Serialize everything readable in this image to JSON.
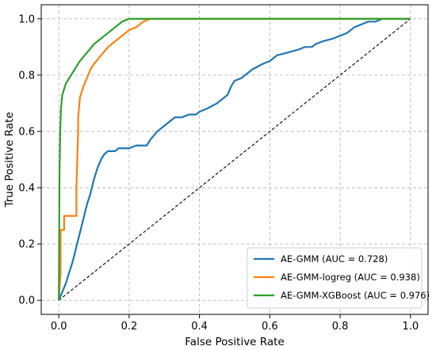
{
  "chart_data": {
    "type": "line",
    "title": "",
    "xlabel": "False Positive Rate",
    "ylabel": "True Positive Rate",
    "xlim": [
      -0.05,
      1.05
    ],
    "ylim": [
      -0.05,
      1.05
    ],
    "xticks": [
      0.0,
      0.2,
      0.4,
      0.6,
      0.8,
      1.0
    ],
    "xtick_labels": [
      "0.0",
      "0.2",
      "0.4",
      "0.6",
      "0.8",
      "1.0"
    ],
    "yticks": [
      0.0,
      0.2,
      0.4,
      0.6,
      0.8,
      1.0
    ],
    "ytick_labels": [
      "0.0",
      "0.2",
      "0.4",
      "0.6",
      "0.8",
      "1.0"
    ],
    "grid": true,
    "legend_position": "lower-right",
    "series": [
      {
        "name": "AE-GMM (AUC = 0.728)",
        "color": "#1f77b4",
        "x": [
          0.0,
          0.01,
          0.02,
          0.03,
          0.04,
          0.05,
          0.06,
          0.07,
          0.08,
          0.09,
          0.1,
          0.11,
          0.12,
          0.13,
          0.14,
          0.16,
          0.17,
          0.2,
          0.22,
          0.25,
          0.26,
          0.28,
          0.3,
          0.32,
          0.33,
          0.35,
          0.37,
          0.38,
          0.39,
          0.4,
          0.42,
          0.45,
          0.48,
          0.49,
          0.5,
          0.52,
          0.55,
          0.58,
          0.6,
          0.62,
          0.65,
          0.68,
          0.7,
          0.72,
          0.73,
          0.75,
          0.78,
          0.8,
          0.82,
          0.84,
          0.86,
          0.88,
          0.9,
          0.92,
          0.95,
          1.0
        ],
        "y": [
          0.0,
          0.03,
          0.06,
          0.1,
          0.14,
          0.19,
          0.24,
          0.29,
          0.34,
          0.38,
          0.43,
          0.47,
          0.5,
          0.52,
          0.53,
          0.53,
          0.54,
          0.54,
          0.55,
          0.55,
          0.57,
          0.6,
          0.62,
          0.64,
          0.65,
          0.65,
          0.66,
          0.66,
          0.66,
          0.67,
          0.68,
          0.7,
          0.73,
          0.76,
          0.78,
          0.79,
          0.82,
          0.84,
          0.85,
          0.87,
          0.88,
          0.89,
          0.9,
          0.9,
          0.91,
          0.92,
          0.93,
          0.94,
          0.95,
          0.97,
          0.98,
          0.99,
          0.99,
          1.0,
          1.0,
          1.0
        ]
      },
      {
        "name": "AE-GMM-logreg (AUC = 0.938)",
        "color": "#ff7f0e",
        "x": [
          0.0,
          0.005,
          0.005,
          0.015,
          0.015,
          0.05,
          0.05,
          0.055,
          0.055,
          0.06,
          0.07,
          0.08,
          0.09,
          0.1,
          0.12,
          0.14,
          0.16,
          0.18,
          0.2,
          0.22,
          0.24,
          0.26,
          0.28,
          0.3,
          0.4,
          0.6,
          0.8,
          1.0
        ],
        "y": [
          0.0,
          0.1,
          0.25,
          0.25,
          0.3,
          0.3,
          0.4,
          0.6,
          0.65,
          0.72,
          0.76,
          0.79,
          0.82,
          0.84,
          0.87,
          0.9,
          0.92,
          0.94,
          0.96,
          0.97,
          0.99,
          1.0,
          1.0,
          1.0,
          1.0,
          1.0,
          1.0,
          1.0
        ]
      },
      {
        "name": "AE-GMM-XGBoost (AUC = 0.976)",
        "color": "#2ca02c",
        "x": [
          0.0,
          0.002,
          0.004,
          0.006,
          0.01,
          0.02,
          0.03,
          0.04,
          0.05,
          0.06,
          0.08,
          0.1,
          0.12,
          0.14,
          0.16,
          0.18,
          0.2,
          0.22,
          0.25,
          0.3,
          0.4,
          0.5,
          0.6,
          0.7,
          0.8,
          0.9,
          1.0
        ],
        "y": [
          0.0,
          0.45,
          0.6,
          0.68,
          0.73,
          0.77,
          0.79,
          0.81,
          0.83,
          0.85,
          0.88,
          0.91,
          0.93,
          0.95,
          0.97,
          0.99,
          1.0,
          1.0,
          1.0,
          1.0,
          1.0,
          1.0,
          1.0,
          1.0,
          1.0,
          1.0,
          1.0
        ]
      }
    ],
    "reference_line": {
      "style": "dashed",
      "color": "#000000",
      "x": [
        0.0,
        1.0
      ],
      "y": [
        0.0,
        1.0
      ]
    }
  }
}
